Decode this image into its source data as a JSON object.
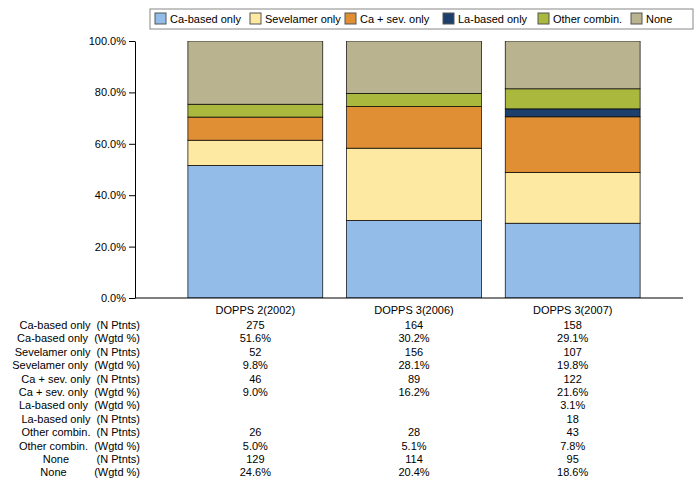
{
  "chart_data": {
    "type": "bar",
    "stacked": true,
    "categories": [
      "DOPPS 2(2002)",
      "DOPPS 3(2006)",
      "DOPPS 3(2007)"
    ],
    "series": [
      {
        "name": "Ca-based only",
        "color": "#93bde8",
        "values": [
          51.6,
          30.2,
          29.1
        ]
      },
      {
        "name": "Sevelamer only",
        "color": "#fde9a2",
        "values": [
          9.8,
          28.1,
          19.8
        ]
      },
      {
        "name": "Ca + sev. only",
        "color": "#e08f34",
        "values": [
          9.0,
          16.2,
          21.6
        ]
      },
      {
        "name": "La-based only",
        "color": "#1d3f6c",
        "values": [
          null,
          null,
          3.1
        ]
      },
      {
        "name": "Other combin.",
        "color": "#aab83e",
        "values": [
          5.0,
          5.1,
          7.8
        ]
      },
      {
        "name": "None",
        "color": "#b9b38f",
        "values": [
          24.6,
          20.4,
          18.6
        ]
      }
    ],
    "ylim": [
      0,
      100
    ],
    "yticks": [
      {
        "value": 0,
        "label": "0.0%"
      },
      {
        "value": 20,
        "label": "20.0%"
      },
      {
        "value": 40,
        "label": "40.0%"
      },
      {
        "value": 60,
        "label": "60.0%"
      },
      {
        "value": 80,
        "label": "80.0%"
      },
      {
        "value": 100,
        "label": "100.0%"
      }
    ],
    "legend": "top"
  },
  "table": {
    "rows": [
      {
        "label": "Ca-based only  (N Ptnts)",
        "cells": [
          "275",
          "164",
          "158"
        ]
      },
      {
        "label": "Ca-based only  (Wgtd %)",
        "cells": [
          "51.6%",
          "30.2%",
          "29.1%"
        ]
      },
      {
        "label": "Sevelamer only  (N Ptnts)",
        "cells": [
          "52",
          "156",
          "107"
        ]
      },
      {
        "label": "Sevelamer only  (Wgtd %)",
        "cells": [
          "9.8%",
          "28.1%",
          "19.8%"
        ]
      },
      {
        "label": "Ca + sev. only  (N Ptnts)",
        "cells": [
          "46",
          "89",
          "122"
        ]
      },
      {
        "label": "Ca + sev. only  (Wgtd %)",
        "cells": [
          "9.0%",
          "16.2%",
          "21.6%"
        ]
      },
      {
        "label": "La-based only  (Wgtd %)",
        "cells": [
          null,
          null,
          "3.1%"
        ]
      },
      {
        "label": "La-based only  (N Ptnts)",
        "cells": [
          null,
          null,
          "18"
        ]
      },
      {
        "label": "Other combin.  (N Ptnts)",
        "cells": [
          "26",
          "28",
          "43"
        ]
      },
      {
        "label": "Other combin.  (Wgtd %)",
        "cells": [
          "5.0%",
          "5.1%",
          "7.8%"
        ]
      },
      {
        "label": "None         (N Ptnts)",
        "cells": [
          "129",
          "114",
          "95"
        ]
      },
      {
        "label": "None         (Wgtd %)",
        "cells": [
          "24.6%",
          "20.4%",
          "18.6%"
        ]
      }
    ]
  }
}
